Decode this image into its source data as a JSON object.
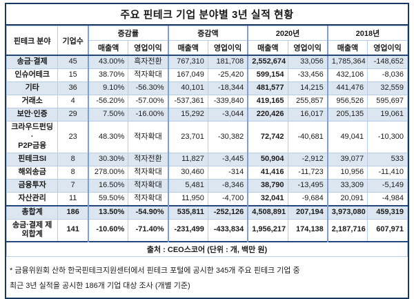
{
  "title": "주요 핀테크 기업 분야별 3년 실적 현황",
  "header": {
    "sector": "핀테크 분야",
    "count": "기업수",
    "groups": [
      {
        "label": "증감률",
        "subs": [
          "매출액",
          "영업이익"
        ]
      },
      {
        "label": "증감액",
        "subs": [
          "매출액",
          "영업이익"
        ]
      },
      {
        "label": "2020년",
        "subs": [
          "매출액",
          "영업이익"
        ]
      },
      {
        "label": "2018년",
        "subs": [
          "매출액",
          "영업이익"
        ]
      }
    ]
  },
  "chart_data": {
    "type": "table",
    "title": "주요 핀테크 기업 분야별 3년 실적 현황",
    "columns": [
      "핀테크 분야",
      "기업수",
      "증감률 매출액",
      "증감률 영업이익",
      "증감액 매출액",
      "증감액 영업이익",
      "2020년 매출액",
      "2020년 영업이익",
      "2018년 매출액",
      "2018년 영업이익"
    ],
    "rows": [
      [
        "송금·결제",
        "45",
        "43.00%",
        "흑자전환",
        "767,310",
        "181,708",
        "2,552,674",
        "33,056",
        "1,785,364",
        "-148,652"
      ],
      [
        "인슈어테크",
        "15",
        "38.70%",
        "적자확대",
        "167,049",
        "-25,420",
        "599,154",
        "-33,456",
        "432,106",
        "-8,036"
      ],
      [
        "기타",
        "36",
        "9.10%",
        "-56.30%",
        "40,101",
        "-18,344",
        "481,577",
        "14,215",
        "441,476",
        "32,559"
      ],
      [
        "거래소",
        "4",
        "-56.20%",
        "-57.00%",
        "-537,361",
        "-339,840",
        "419,165",
        "255,857",
        "956,526",
        "595,697"
      ],
      [
        "보안·인증",
        "29",
        "7.50%",
        "-16.00%",
        "15,292",
        "-3,044",
        "220,426",
        "16,017",
        "205,135",
        "19,061"
      ],
      [
        "크라우드펀딩\n·\nP2P금융",
        "23",
        "48.30%",
        "적자확대",
        "23,701",
        "-30,382",
        "72,742",
        "-40,681",
        "49,041",
        "-10,300"
      ],
      [
        "핀테크SI",
        "8",
        "30.30%",
        "적자전환",
        "11,827",
        "-3,445",
        "50,904",
        "-2,912",
        "39,077",
        "533"
      ],
      [
        "해외송금",
        "8",
        "278.00%",
        "적자확대",
        "30,460",
        "-314",
        "41,416",
        "-11,723",
        "10,956",
        "-11,410"
      ],
      [
        "금융투자",
        "7",
        "16.50%",
        "적자확대",
        "5,481",
        "-8,346",
        "38,790",
        "-13,495",
        "33,309",
        "-5,149"
      ],
      [
        "자산관리",
        "11",
        "59.50%",
        "적자확대",
        "11,950",
        "-4,700",
        "32,041",
        "-9,684",
        "20,091",
        "-4,984"
      ]
    ],
    "total_rows": [
      [
        "총합계",
        "186",
        "13.50%",
        "-54.90%",
        "535,811",
        "-252,126",
        "4,508,891",
        "207,194",
        "3,973,080",
        "459,319"
      ],
      [
        "송금·결제 제\n외합계",
        "141",
        "-10.60%",
        "-71.40%",
        "-231,499",
        "-433,834",
        "1,956,217",
        "174,138",
        "2,187,716",
        "607,971"
      ]
    ],
    "source": "출처 : CEO스코어 (단위 : 개, 백만 원)",
    "status_values": [
      "흑자전환",
      "적자확대",
      "적자전환"
    ]
  },
  "footnotes": {
    "line1": "* 금융위원회 산하 한국핀테크지원센터에서 핀테크 포털에 공시한 345개 주요 핀테크 기업 중",
    "line2": "최근 3년 실적을 공시한 186개 기업 대상 조사 (개별 기준)"
  },
  "colors": {
    "stripe": "#dce6f1",
    "border_thin": "#b8cce4",
    "border_mid": "#7f9fd4",
    "border_dark": "#24457c",
    "outer": "#17375e",
    "text": "#1a1a1a"
  }
}
